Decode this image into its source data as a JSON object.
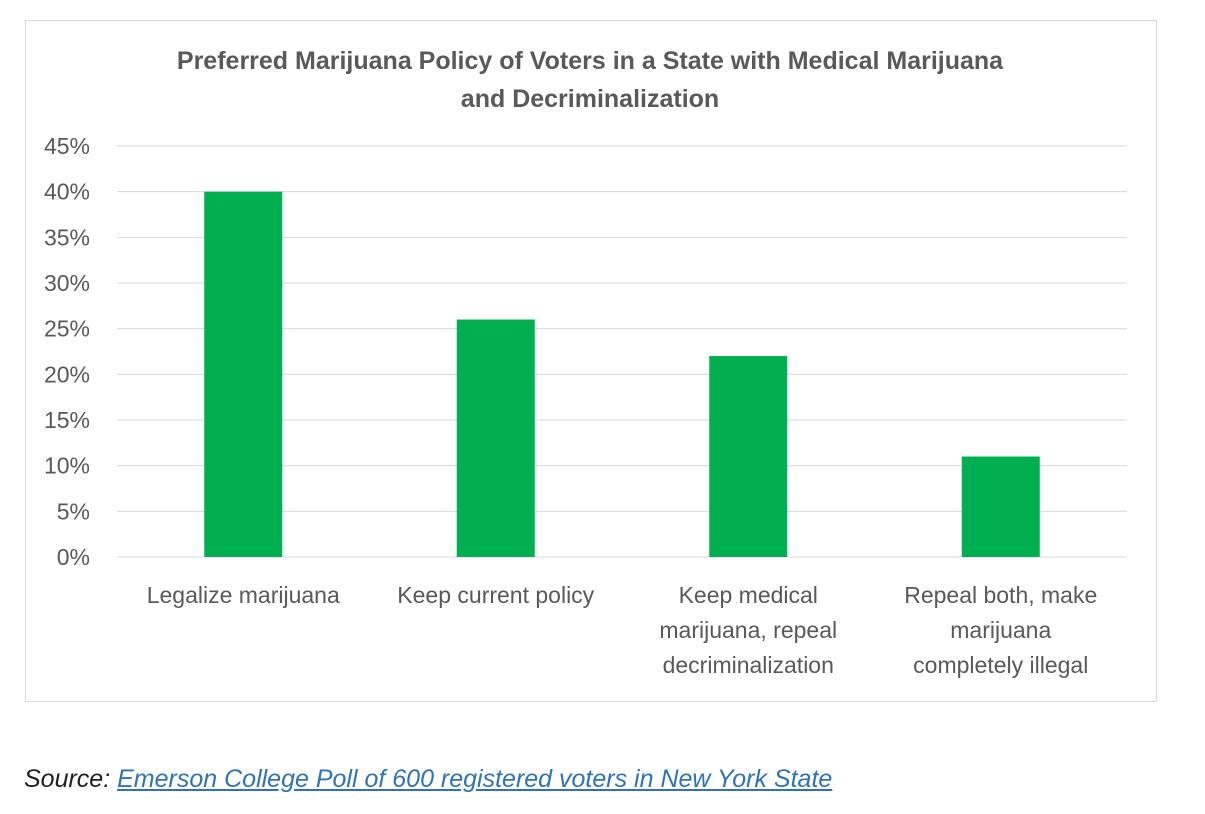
{
  "chart_data": {
    "type": "bar",
    "title_lines": [
      "Preferred Marijuana Policy of Voters in a State with Medical Marijuana",
      "and Decriminalization"
    ],
    "categories": [
      [
        "Legalize marijuana"
      ],
      [
        "Keep current policy"
      ],
      [
        "Keep medical",
        "marijuana, repeal",
        "decriminalization"
      ],
      [
        "Repeal both, make",
        "marijuana",
        "completely illegal"
      ]
    ],
    "values": [
      40,
      26,
      22,
      11
    ],
    "ylim": [
      0,
      45
    ],
    "ytick_step": 5,
    "ytick_labels": [
      "0%",
      "5%",
      "10%",
      "15%",
      "20%",
      "25%",
      "30%",
      "35%",
      "40%",
      "45%"
    ],
    "grid": true,
    "bar_color": "#00b050",
    "xlabel": "",
    "ylabel": ""
  },
  "source": {
    "label": "Source:",
    "link_text": "Emerson College Poll of 600 registered voters in New York State"
  }
}
